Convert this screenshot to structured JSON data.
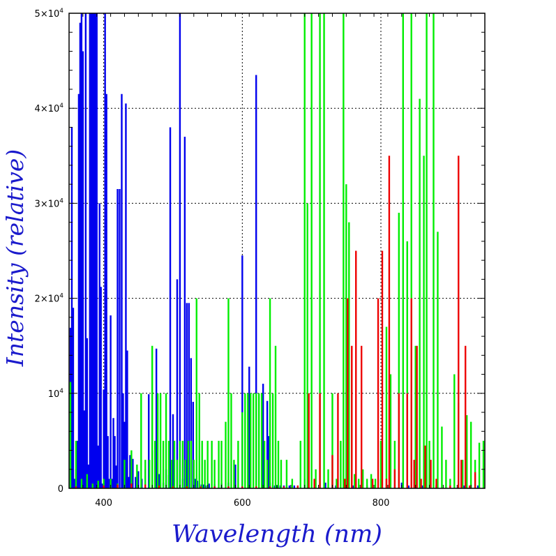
{
  "chart_data": {
    "type": "bar",
    "title": "",
    "xlabel": "Wavelength (nm)",
    "ylabel": "Intensity (relative)",
    "xlim": [
      350,
      950
    ],
    "ylim": [
      0,
      50000
    ],
    "x_ticks": [
      400,
      600,
      800
    ],
    "x_tick_labels": [
      "400",
      "600",
      "800"
    ],
    "y_ticks": [
      0,
      10000,
      20000,
      30000,
      40000,
      50000
    ],
    "y_tick_labels": [
      {
        "base": "0",
        "exp": ""
      },
      {
        "base": "10",
        "exp": "4"
      },
      {
        "base": "2×10",
        "exp": "4"
      },
      {
        "base": "3×10",
        "exp": "4"
      },
      {
        "base": "4×10",
        "exp": "4"
      },
      {
        "base": "5×10",
        "exp": "4"
      }
    ],
    "grid": true,
    "legend": "none",
    "series": [
      {
        "color": "#0000ee",
        "x": [
          352,
          354,
          356,
          358,
          360,
          362,
          364,
          366,
          368,
          370,
          372,
          374,
          376,
          378,
          380,
          382,
          384,
          386,
          388,
          390,
          392,
          394,
          396,
          398,
          400,
          402,
          404,
          406,
          408,
          410,
          412,
          414,
          416,
          418,
          420,
          423,
          426,
          428,
          430,
          432,
          434,
          436,
          438,
          440,
          442,
          446,
          450,
          455,
          460,
          465,
          470,
          476,
          480,
          486,
          490,
          494,
          496,
          500,
          506,
          510,
          514,
          517,
          520,
          523,
          526,
          529,
          532,
          535,
          538,
          541,
          544,
          547,
          552,
          560,
          570,
          580,
          590,
          600,
          610,
          620,
          630,
          636,
          638,
          640,
          644,
          647,
          650,
          655,
          660,
          664,
          668,
          675,
          690,
          705,
          720,
          735,
          760,
          780,
          800,
          820,
          830,
          840,
          860,
          880,
          900,
          920,
          940
        ],
        "values": [
          16900,
          38000,
          19000,
          1000,
          2000,
          5000,
          41500,
          49000,
          50000,
          46000,
          8200,
          50000,
          15800,
          2500,
          50000,
          50000,
          50000,
          50000,
          50000,
          50000,
          4500,
          30000,
          21200,
          500,
          10400,
          50000,
          41500,
          5500,
          1000,
          18200,
          1000,
          7400,
          5500,
          2400,
          31500,
          31500,
          41500,
          10000,
          7000,
          40500,
          14500,
          1200,
          3500,
          1800,
          3100,
          1200,
          1800,
          1000,
          2000,
          9900,
          4000,
          14700,
          1500,
          600,
          2000,
          1400,
          38000,
          7800,
          22000,
          50000,
          1000,
          37000,
          19500,
          19500,
          13700,
          9100,
          1000,
          800,
          600,
          400,
          400,
          300,
          500,
          400,
          500,
          600,
          2500,
          24500,
          12800,
          43500,
          11000,
          9200,
          5500,
          600,
          300,
          300,
          300,
          300,
          300,
          300,
          300,
          300,
          1000,
          300,
          600,
          300,
          300,
          300,
          1000,
          300,
          600,
          300,
          300,
          300,
          300,
          300,
          300
        ]
      },
      {
        "color": "#00ee00",
        "x": [
          352,
          360,
          368,
          376,
          384,
          392,
          400,
          410,
          420,
          430,
          440,
          448,
          454,
          460,
          466,
          470,
          474,
          478,
          482,
          486,
          490,
          494,
          498,
          502,
          506,
          510,
          514,
          518,
          522,
          526,
          530,
          534,
          538,
          542,
          546,
          550,
          556,
          560,
          566,
          570,
          576,
          580,
          584,
          588,
          594,
          600,
          604,
          608,
          612,
          616,
          620,
          624,
          628,
          632,
          636,
          640,
          644,
          648,
          652,
          656,
          664,
          672,
          684,
          690,
          694,
          700,
          706,
          712,
          718,
          724,
          730,
          736,
          742,
          746,
          750,
          754,
          758,
          762,
          768,
          774,
          780,
          786,
          792,
          800,
          808,
          814,
          820,
          826,
          832,
          838,
          844,
          850,
          856,
          862,
          866,
          870,
          876,
          882,
          888,
          894,
          900,
          906,
          912,
          918,
          924,
          930,
          936,
          942,
          948
        ],
        "values": [
          11200,
          5000,
          1000,
          1500,
          500,
          800,
          1000,
          1000,
          500,
          3000,
          4000,
          2500,
          10000,
          3000,
          3000,
          15000,
          5000,
          10000,
          10000,
          5000,
          10000,
          5000,
          3000,
          5000,
          3000,
          5000,
          5000,
          3000,
          5000,
          5000,
          3000,
          20000,
          10000,
          5000,
          3000,
          5000,
          5000,
          3000,
          5000,
          5000,
          7000,
          20000,
          10000,
          3000,
          5000,
          8000,
          10000,
          10000,
          10000,
          10000,
          10000,
          10000,
          10000,
          5000,
          3000,
          20000,
          10000,
          15000,
          5000,
          3000,
          3000,
          1000,
          5000,
          50000,
          30000,
          50000,
          2000,
          50000,
          50000,
          2000,
          10000,
          1000,
          5000,
          50000,
          32000,
          28000,
          12500,
          1500,
          1000,
          2000,
          1000,
          1500,
          1000,
          5000,
          17000,
          12000,
          5000,
          29000,
          50000,
          26000,
          50000,
          15000,
          41000,
          35000,
          50000,
          5000,
          50000,
          27000,
          6500,
          3000,
          1000,
          12000,
          9000,
          3000,
          7700,
          7000,
          3000,
          4800,
          5000
        ]
      },
      {
        "color": "#ee0000",
        "x": [
          360,
          400,
          420,
          440,
          460,
          480,
          500,
          520,
          540,
          560,
          580,
          600,
          620,
          640,
          660,
          680,
          696,
          704,
          712,
          730,
          738,
          748,
          752,
          758,
          764,
          772,
          788,
          796,
          802,
          808,
          812,
          820,
          826,
          838,
          844,
          848,
          852,
          858,
          864,
          872,
          880,
          900,
          912,
          916,
          922,
          928,
          936
        ],
        "values": [
          200,
          300,
          400,
          500,
          400,
          300,
          200,
          200,
          200,
          200,
          200,
          200,
          200,
          200,
          200,
          300,
          10000,
          1000,
          10000,
          3500,
          10000,
          1000,
          20000,
          15000,
          25000,
          15000,
          1000,
          20000,
          25000,
          1000,
          35000,
          2000,
          10000,
          10000,
          20000,
          3000,
          15000,
          1000,
          4500,
          3000,
          1000,
          300,
          35000,
          3000,
          15000,
          300,
          1700
        ]
      }
    ]
  }
}
